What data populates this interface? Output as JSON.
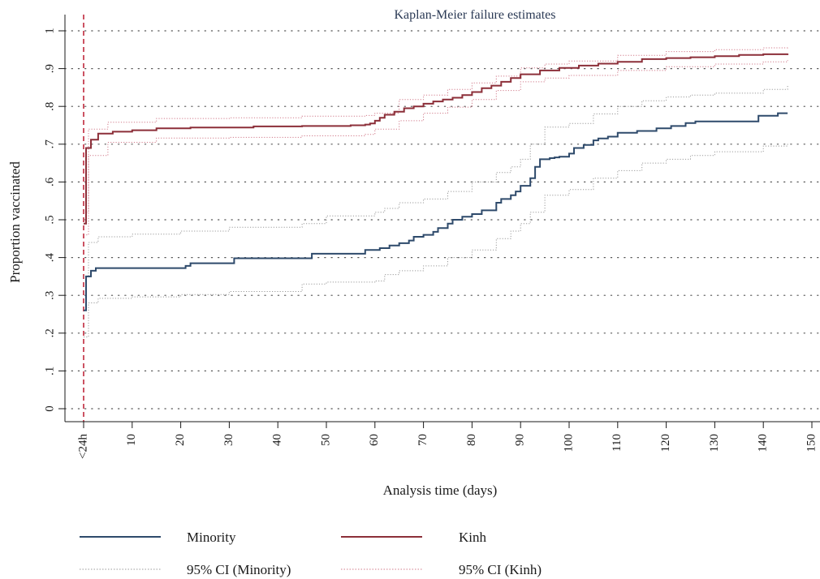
{
  "chart_data": {
    "type": "line",
    "title": "Kaplan-Meier failure estimates",
    "xlabel": "Analysis time (days)",
    "ylabel": "Proportion vaccinated",
    "xlim": [
      0,
      150
    ],
    "ylim": [
      0,
      1
    ],
    "x_ticks": [
      {
        "value": 0,
        "label": "<24h"
      },
      {
        "value": 10,
        "label": "10"
      },
      {
        "value": 20,
        "label": "20"
      },
      {
        "value": 30,
        "label": "30"
      },
      {
        "value": 40,
        "label": "40"
      },
      {
        "value": 50,
        "label": "50"
      },
      {
        "value": 60,
        "label": "60"
      },
      {
        "value": 70,
        "label": "70"
      },
      {
        "value": 80,
        "label": "80"
      },
      {
        "value": 90,
        "label": "90"
      },
      {
        "value": 100,
        "label": "100"
      },
      {
        "value": 110,
        "label": "110"
      },
      {
        "value": 120,
        "label": "120"
      },
      {
        "value": 130,
        "label": "130"
      },
      {
        "value": 140,
        "label": "140"
      },
      {
        "value": 150,
        "label": "150"
      }
    ],
    "y_ticks": [
      {
        "value": 0,
        "label": "0"
      },
      {
        "value": 0.1,
        "label": ".1"
      },
      {
        "value": 0.2,
        "label": ".2"
      },
      {
        "value": 0.3,
        "label": ".3"
      },
      {
        "value": 0.4,
        "label": ".4"
      },
      {
        "value": 0.5,
        "label": ".5"
      },
      {
        "value": 0.6,
        "label": ".6"
      },
      {
        "value": 0.7,
        "label": ".7"
      },
      {
        "value": 0.8,
        "label": ".8"
      },
      {
        "value": 0.9,
        "label": ".9"
      },
      {
        "value": 1,
        "label": "1"
      }
    ],
    "grid": "horizontal dotted",
    "reference_line": {
      "x": 0,
      "style": "dashed",
      "color": "#c0283c"
    },
    "legend_position": "bottom",
    "series": [
      {
        "name": "Minority",
        "color": "#2e4a6b",
        "style": "solid",
        "x": [
          0,
          0,
          0.5,
          1.5,
          2.5,
          13,
          21,
          22,
          31,
          45,
          47,
          58,
          61,
          63,
          65,
          67,
          68,
          70,
          72,
          73,
          75,
          76,
          78,
          80,
          82,
          85,
          86,
          88,
          89,
          90,
          92,
          93,
          94,
          95,
          96,
          97,
          98,
          100,
          101,
          103,
          105,
          106,
          108,
          110,
          114,
          118,
          121,
          124,
          126,
          132,
          139,
          143,
          145
        ],
        "y": [
          0.26,
          0.26,
          0.35,
          0.365,
          0.372,
          0.372,
          0.378,
          0.385,
          0.398,
          0.398,
          0.41,
          0.42,
          0.425,
          0.432,
          0.438,
          0.445,
          0.455,
          0.46,
          0.468,
          0.478,
          0.49,
          0.5,
          0.508,
          0.515,
          0.525,
          0.545,
          0.555,
          0.565,
          0.575,
          0.59,
          0.61,
          0.64,
          0.66,
          0.66,
          0.663,
          0.665,
          0.667,
          0.675,
          0.69,
          0.698,
          0.71,
          0.715,
          0.72,
          0.73,
          0.735,
          0.742,
          0.748,
          0.756,
          0.76,
          0.76,
          0.775,
          0.782,
          0.782
        ]
      },
      {
        "name": "Kinh",
        "color": "#8c2f39",
        "style": "solid",
        "x": [
          0,
          0,
          0.5,
          1.5,
          3,
          6,
          10,
          15,
          22,
          30,
          35,
          45,
          55,
          58,
          59,
          60,
          61,
          62,
          64,
          66,
          68,
          70,
          72,
          74,
          76,
          78,
          80,
          82,
          84,
          86,
          88,
          90,
          94,
          98,
          102,
          106,
          110,
          115,
          120,
          125,
          130,
          135,
          140,
          145
        ],
        "y": [
          0.49,
          0.49,
          0.69,
          0.712,
          0.728,
          0.733,
          0.737,
          0.742,
          0.744,
          0.744,
          0.747,
          0.748,
          0.75,
          0.752,
          0.755,
          0.762,
          0.77,
          0.778,
          0.786,
          0.795,
          0.8,
          0.807,
          0.813,
          0.818,
          0.823,
          0.83,
          0.838,
          0.848,
          0.855,
          0.865,
          0.875,
          0.885,
          0.895,
          0.902,
          0.908,
          0.913,
          0.918,
          0.925,
          0.928,
          0.93,
          0.933,
          0.936,
          0.938,
          0.94
        ]
      },
      {
        "name": "95% CI (Minority)",
        "color": "#9a9a9a",
        "style": "dotted",
        "bounds": [
          {
            "x": [
              0,
              0,
              1,
              3,
              10,
              20,
              30,
              45,
              50,
              60,
              62,
              65,
              70,
              75,
              80,
              85,
              88,
              90,
              92,
              95,
              100,
              105,
              110,
              115,
              120,
              125,
              130,
              140,
              145
            ],
            "y": [
              0.19,
              0.19,
              0.28,
              0.292,
              0.296,
              0.302,
              0.31,
              0.33,
              0.335,
              0.338,
              0.355,
              0.365,
              0.378,
              0.4,
              0.42,
              0.45,
              0.47,
              0.49,
              0.52,
              0.565,
              0.58,
              0.61,
              0.63,
              0.65,
              0.66,
              0.67,
              0.68,
              0.695,
              0.705
            ]
          },
          {
            "x": [
              0,
              0,
              1,
              3,
              10,
              20,
              30,
              45,
              50,
              60,
              62,
              65,
              70,
              75,
              80,
              85,
              88,
              90,
              92,
              95,
              100,
              105,
              110,
              115,
              120,
              125,
              130,
              140,
              145
            ],
            "y": [
              0.35,
              0.35,
              0.44,
              0.455,
              0.462,
              0.47,
              0.48,
              0.49,
              0.51,
              0.52,
              0.53,
              0.545,
              0.555,
              0.575,
              0.6,
              0.625,
              0.64,
              0.66,
              0.7,
              0.745,
              0.755,
              0.78,
              0.8,
              0.815,
              0.825,
              0.83,
              0.835,
              0.845,
              0.855
            ]
          }
        ]
      },
      {
        "name": "95% CI (Kinh)",
        "color": "#d17a8a",
        "style": "dotted",
        "bounds": [
          {
            "x": [
              0,
              0,
              1,
              5,
              15,
              30,
              45,
              58,
              60,
              65,
              70,
              75,
              80,
              85,
              90,
              95,
              100,
              110,
              120,
              130,
              140,
              145
            ],
            "y": [
              0.46,
              0.46,
              0.67,
              0.705,
              0.716,
              0.718,
              0.722,
              0.726,
              0.74,
              0.762,
              0.782,
              0.798,
              0.818,
              0.842,
              0.865,
              0.875,
              0.882,
              0.895,
              0.905,
              0.912,
              0.918,
              0.922
            ]
          },
          {
            "x": [
              0,
              0,
              1,
              5,
              15,
              30,
              45,
              58,
              60,
              65,
              70,
              75,
              80,
              85,
              90,
              95,
              100,
              110,
              120,
              130,
              140,
              145
            ],
            "y": [
              0.52,
              0.52,
              0.74,
              0.758,
              0.768,
              0.77,
              0.774,
              0.776,
              0.782,
              0.818,
              0.83,
              0.845,
              0.862,
              0.88,
              0.902,
              0.912,
              0.92,
              0.935,
              0.945,
              0.95,
              0.955,
              0.958
            ]
          }
        ]
      }
    ]
  }
}
